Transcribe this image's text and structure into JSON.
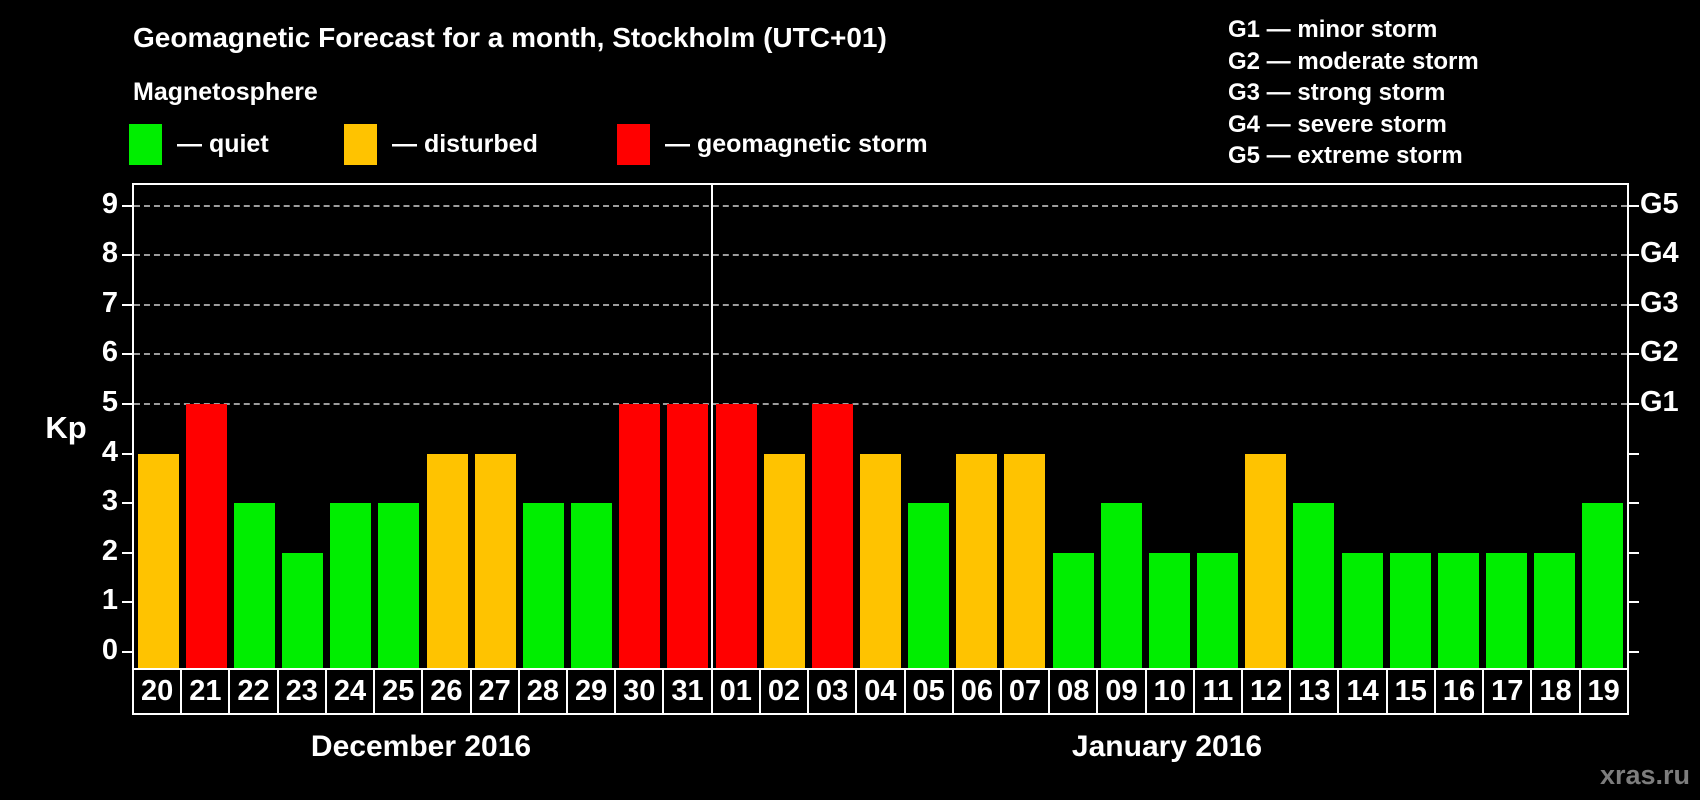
{
  "header": {
    "title": "Geomagnetic Forecast for a month, Stockholm (UTC+01)",
    "subtitle": "Magnetosphere"
  },
  "legend": {
    "items": [
      {
        "key": "quiet",
        "swatch_color": "#00ee00",
        "label": "— quiet"
      },
      {
        "key": "disturbed",
        "swatch_color": "#ffc300",
        "label": "— disturbed"
      },
      {
        "key": "storm",
        "swatch_color": "#ff0000",
        "label": "— geomagnetic storm"
      }
    ]
  },
  "g_scale_legend": {
    "items": [
      "G1 — minor storm",
      "G2 — moderate storm",
      "G3 — strong storm",
      "G4 — severe storm",
      "G5 — extreme storm"
    ]
  },
  "axes": {
    "y_title": "Kp",
    "y_ticks": [
      0,
      1,
      2,
      3,
      4,
      5,
      6,
      7,
      8,
      9
    ],
    "right_labels": [
      {
        "kp": 5,
        "label": "G1"
      },
      {
        "kp": 6,
        "label": "G2"
      },
      {
        "kp": 7,
        "label": "G3"
      },
      {
        "kp": 8,
        "label": "G4"
      },
      {
        "kp": 9,
        "label": "G5"
      }
    ]
  },
  "months": [
    {
      "label": "December 2016",
      "days": 12
    },
    {
      "label": "January 2016",
      "days": 19
    }
  ],
  "chart_data": {
    "type": "bar",
    "title": "Geomagnetic Forecast for a month, Stockholm (UTC+01)",
    "subtitle": "Magnetosphere",
    "xlabel": "",
    "ylabel": "Kp",
    "ylim": [
      0,
      9.4
    ],
    "grid": "dashed horizontal at Kp 5-9 only",
    "gridlines_at_kp": [
      5,
      6,
      7,
      8,
      9
    ],
    "status_colors": {
      "quiet": "#00ee00",
      "disturbed": "#ffc300",
      "storm": "#ff0000"
    },
    "bars": [
      {
        "month": "December 2016",
        "day": "20",
        "kp": 4,
        "status": "disturbed"
      },
      {
        "month": "December 2016",
        "day": "21",
        "kp": 5,
        "status": "storm"
      },
      {
        "month": "December 2016",
        "day": "22",
        "kp": 3,
        "status": "quiet"
      },
      {
        "month": "December 2016",
        "day": "23",
        "kp": 2,
        "status": "quiet"
      },
      {
        "month": "December 2016",
        "day": "24",
        "kp": 3,
        "status": "quiet"
      },
      {
        "month": "December 2016",
        "day": "25",
        "kp": 3,
        "status": "quiet"
      },
      {
        "month": "December 2016",
        "day": "26",
        "kp": 4,
        "status": "disturbed"
      },
      {
        "month": "December 2016",
        "day": "27",
        "kp": 4,
        "status": "disturbed"
      },
      {
        "month": "December 2016",
        "day": "28",
        "kp": 3,
        "status": "quiet"
      },
      {
        "month": "December 2016",
        "day": "29",
        "kp": 3,
        "status": "quiet"
      },
      {
        "month": "December 2016",
        "day": "30",
        "kp": 5,
        "status": "storm"
      },
      {
        "month": "December 2016",
        "day": "31",
        "kp": 5,
        "status": "storm"
      },
      {
        "month": "January 2016",
        "day": "01",
        "kp": 5,
        "status": "storm"
      },
      {
        "month": "January 2016",
        "day": "02",
        "kp": 4,
        "status": "disturbed"
      },
      {
        "month": "January 2016",
        "day": "03",
        "kp": 5,
        "status": "storm"
      },
      {
        "month": "January 2016",
        "day": "04",
        "kp": 4,
        "status": "disturbed"
      },
      {
        "month": "January 2016",
        "day": "05",
        "kp": 3,
        "status": "quiet"
      },
      {
        "month": "January 2016",
        "day": "06",
        "kp": 4,
        "status": "disturbed"
      },
      {
        "month": "January 2016",
        "day": "07",
        "kp": 4,
        "status": "disturbed"
      },
      {
        "month": "January 2016",
        "day": "08",
        "kp": 2,
        "status": "quiet"
      },
      {
        "month": "January 2016",
        "day": "09",
        "kp": 3,
        "status": "quiet"
      },
      {
        "month": "January 2016",
        "day": "10",
        "kp": 2,
        "status": "quiet"
      },
      {
        "month": "January 2016",
        "day": "11",
        "kp": 2,
        "status": "quiet"
      },
      {
        "month": "January 2016",
        "day": "12",
        "kp": 4,
        "status": "disturbed"
      },
      {
        "month": "January 2016",
        "day": "13",
        "kp": 3,
        "status": "quiet"
      },
      {
        "month": "January 2016",
        "day": "14",
        "kp": 2,
        "status": "quiet"
      },
      {
        "month": "January 2016",
        "day": "15",
        "kp": 2,
        "status": "quiet"
      },
      {
        "month": "January 2016",
        "day": "16",
        "kp": 2,
        "status": "quiet"
      },
      {
        "month": "January 2016",
        "day": "17",
        "kp": 2,
        "status": "quiet"
      },
      {
        "month": "January 2016",
        "day": "18",
        "kp": 2,
        "status": "quiet"
      },
      {
        "month": "January 2016",
        "day": "19",
        "kp": 3,
        "status": "quiet"
      }
    ]
  },
  "watermark": "xras.ru"
}
